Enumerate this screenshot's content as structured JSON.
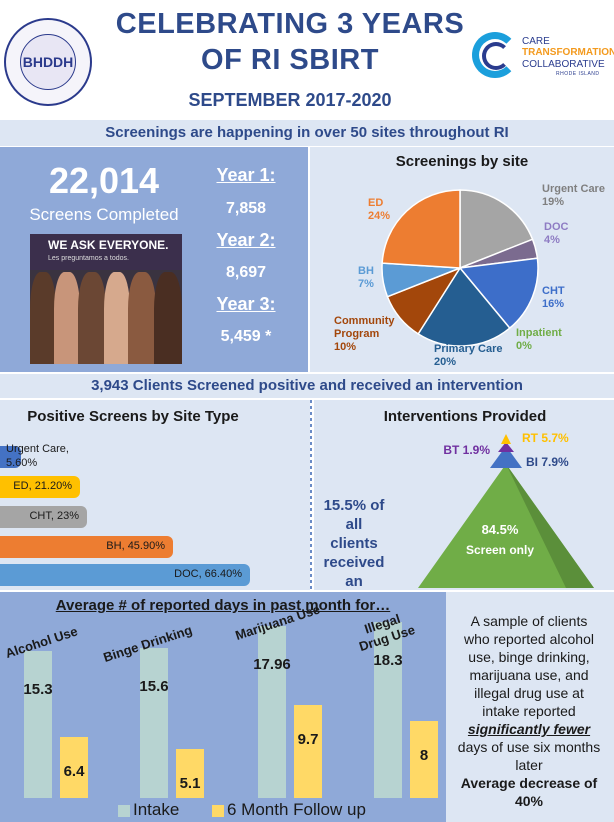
{
  "header": {
    "title_line1": "CELEBRATING 3 YEARS",
    "title_line2": "OF RI SBIRT",
    "subtitle": "SEPTEMBER 2017-2020",
    "logo_left_text": "BHDDH",
    "logo_right_line1": "CARE",
    "logo_right_line2": "TRANSFORMATION",
    "logo_right_line3": "COLLABORATIVE",
    "logo_right_line4": "RHODE ISLAND"
  },
  "banners": {
    "sites": "Screenings are happening in over 50 sites throughout RI",
    "positive": "3,943 Clients Screened positive and received an intervention"
  },
  "totals": {
    "number": "22,014",
    "caption": "Screens Completed",
    "years": [
      {
        "label": "Year 1:",
        "value": "7,858"
      },
      {
        "label": "Year 2:",
        "value": "8,697"
      },
      {
        "label": "Year 3:",
        "value": "5,459 *"
      }
    ],
    "photo_heading": "WE ASK EVERYONE.",
    "photo_subheading": "Les preguntamos a todos."
  },
  "colors": {
    "banner_bg": "#dde6f3",
    "panel_dark": "#8fa9d8",
    "title": "#2e4a8a",
    "intake": "#b7d3d1",
    "followup": "#ffd966"
  },
  "chart_data": [
    {
      "type": "pie",
      "title": "Screenings by site",
      "categories": [
        "Urgent Care",
        "DOC",
        "CHT",
        "Inpatient",
        "Primary Care",
        "Community Program",
        "BH",
        "ED"
      ],
      "values": [
        19,
        4,
        16,
        0,
        20,
        10,
        7,
        24
      ],
      "labels": [
        "19%",
        "4%",
        "16%",
        "0%",
        "20%",
        "10%",
        "7%",
        "24%"
      ],
      "colors": [
        "#a5a5a5",
        "#7b6b8f",
        "#3d6ec9",
        "#70ad47",
        "#255e91",
        "#a3470b",
        "#5b9bd5",
        "#ed7d31"
      ]
    },
    {
      "type": "bar",
      "orientation": "horizontal",
      "title": "Positive Screens by Site Type",
      "categories": [
        "Urgent Care",
        "ED",
        "CHT",
        "BH",
        "DOC"
      ],
      "values": [
        5.6,
        21.2,
        23,
        45.9,
        66.4
      ],
      "labels": [
        "Urgent Care, 5.60%",
        "ED, 21.20%",
        "CHT, 23%",
        "BH, 45.90%",
        "DOC, 66.40%"
      ],
      "colors": [
        "#4472c4",
        "#ffc000",
        "#a5a5a5",
        "#ed7d31",
        "#5b9bd5"
      ],
      "xlim": [
        0,
        70
      ]
    },
    {
      "type": "pyramid",
      "title": "Interventions Provided",
      "categories": [
        "RT",
        "BT",
        "BI",
        "Screen only"
      ],
      "values": [
        5.7,
        1.9,
        7.9,
        84.5
      ],
      "labels": [
        "RT 5.7%",
        "BT 1.9%",
        "BI 7.9%",
        "84.5% Screen only"
      ],
      "colors": [
        "#ffc000",
        "#7030a0",
        "#4472c4",
        "#70ad47"
      ],
      "note_line1": "15.5% of all",
      "note_line2": "clients",
      "note_line3": "received an",
      "note_line4": "intervention"
    },
    {
      "type": "bar",
      "title": "Average # of reported days in past month for…",
      "categories": [
        "Alcohol Use",
        "Binge Drinking",
        "Marijuana Use",
        "Illegal Drug Use"
      ],
      "series": [
        {
          "name": "Intake",
          "values": [
            15.3,
            15.6,
            17.96,
            18.3
          ]
        },
        {
          "name": "6 Month Follow up",
          "values": [
            6.4,
            5.1,
            9.7,
            8
          ]
        }
      ],
      "value_labels": {
        "intake": [
          "15.3",
          "15.6",
          "17.96",
          "18.3"
        ],
        "followup": [
          "6.4",
          "5.1",
          "9.7",
          "8"
        ]
      },
      "ylim": [
        0,
        20
      ]
    }
  ],
  "summary": {
    "line1": "A sample of clients",
    "line2": "who reported alcohol",
    "line3": "use, binge drinking,",
    "line4": "marijuana use, and",
    "line5": "illegal drug use at",
    "line6": "intake reported",
    "emphasis": "significantly fewer",
    "line7": "days of use six months",
    "line8": "later",
    "decrease_line1": "Average decrease of",
    "decrease_line2": "40%"
  }
}
